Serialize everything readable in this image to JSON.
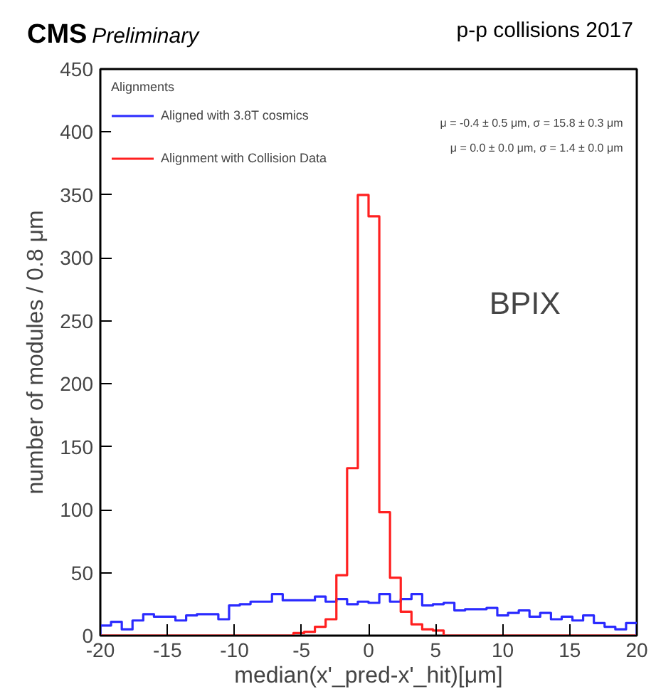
{
  "chart_data": {
    "type": "histogram",
    "title": "CMS",
    "subtitle": "Preliminary",
    "xlabel": "median(x'_pred-x'_hit)[μm]",
    "ylabel": "number of modules / 0.8 μm",
    "legend_title": "Alignments",
    "annotations": [
      "p-p collisions 2017",
      "μ = -0.4 ± 0.5 μm,  σ = 15.8 ± 0.3 μm",
      "μ = 0.0 ± 0.0 μm,  σ = 1.4 ± 0.0 μm",
      "BPIX"
    ],
    "bins": [
      -20,
      -19.2,
      -18.4,
      -17.6,
      -16.8,
      -16,
      -15.2,
      -14.4,
      -13.6,
      -12.8,
      -12,
      -11.2,
      -10.4,
      -9.6,
      -8.8,
      -8,
      -7.2,
      -6.4,
      -5.6,
      -4.8,
      -4,
      -3.2,
      -2.4,
      -1.6,
      -0.8,
      0,
      0.8,
      1.6,
      2.4,
      3.2,
      4,
      4.8,
      5.6,
      6.4,
      7.2,
      8,
      8.8,
      9.6,
      10.4,
      11.2,
      12,
      12.8,
      13.6,
      14.4,
      15.2,
      16,
      16.8,
      17.6,
      18.4,
      19.2,
      20
    ],
    "series": [
      {
        "name": "Aligned with 3.8T cosmics",
        "color": "#2b2bff",
        "values": [
          8,
          11,
          5,
          12,
          17,
          15,
          15,
          12,
          16,
          17,
          17,
          13,
          24,
          25,
          27,
          27,
          33,
          28,
          28,
          28,
          31,
          27,
          29,
          25,
          27,
          26,
          33,
          27,
          29,
          33,
          24,
          25,
          26,
          20,
          21,
          21,
          22,
          16,
          18,
          20,
          15,
          18,
          13,
          15,
          12,
          16,
          10,
          7,
          5,
          10
        ]
      },
      {
        "name": "Alignment with Collision Data",
        "color": "#ff2020",
        "values": [
          0,
          0,
          0,
          0,
          0,
          0,
          0,
          0,
          0,
          0,
          0,
          0,
          0,
          0,
          0,
          0,
          0,
          0,
          2,
          3,
          7,
          13,
          48,
          133,
          350,
          333,
          98,
          46,
          19,
          9,
          5,
          4,
          0,
          0,
          0,
          0,
          0,
          0,
          0,
          0,
          0,
          0,
          0,
          0,
          0,
          0,
          0,
          0,
          0,
          0
        ]
      }
    ],
    "xlim": [
      -20,
      20
    ],
    "ylim": [
      0,
      450
    ],
    "xticks": [
      -20,
      -15,
      -10,
      -5,
      0,
      5,
      10,
      15,
      20
    ],
    "yticks": [
      0,
      50,
      100,
      150,
      200,
      250,
      300,
      350,
      400,
      450
    ],
    "legend": "top left",
    "grid": false
  }
}
